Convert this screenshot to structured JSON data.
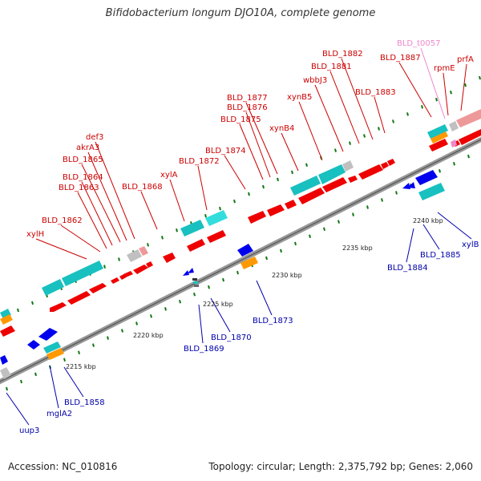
{
  "title": "Bifidobacterium longum DJO10A, complete genome",
  "footer": {
    "accession": "Accession: NC_010816",
    "summary": "Topology: circular; Length: 2,375,792 bp; Genes: 2,060"
  },
  "colors": {
    "forward_label": "#cc0000",
    "reverse_label": "#0000aa",
    "trna_label": "#ee88cc",
    "forward_cds": "#ee0000",
    "reverse_cds": "#0000ee",
    "rrna_cyan": "#19c0c0",
    "orange": "#ff9900",
    "grey": "#c0c0c0",
    "light_red": "#ee9999",
    "backbone": "#888888",
    "tick": "#117711"
  },
  "scale_labels": [
    {
      "text": "2215 kbp",
      "pos": 2215
    },
    {
      "text": "2220 kbp",
      "pos": 2220
    },
    {
      "text": "2225 kbp",
      "pos": 2225
    },
    {
      "text": "2230 kbp",
      "pos": 2230
    },
    {
      "text": "2235 kbp",
      "pos": 2235
    },
    {
      "text": "2240 kbp",
      "pos": 2240
    }
  ],
  "forward_labels": [
    {
      "text": "xylH"
    },
    {
      "text": "BLD_1862"
    },
    {
      "text": "BLD_1863"
    },
    {
      "text": "BLD_1864"
    },
    {
      "text": "BLD_1865"
    },
    {
      "text": "akrA3"
    },
    {
      "text": "def3"
    },
    {
      "text": "BLD_1868"
    },
    {
      "text": "xylA"
    },
    {
      "text": "BLD_1872"
    },
    {
      "text": "BLD_1874"
    },
    {
      "text": "BLD_1875"
    },
    {
      "text": "BLD_1876"
    },
    {
      "text": "BLD_1877"
    },
    {
      "text": "xynB4"
    },
    {
      "text": "xynB5"
    },
    {
      "text": "wbbJ3"
    },
    {
      "text": "BLD_1881"
    },
    {
      "text": "BLD_1882"
    },
    {
      "text": "BLD_1883"
    },
    {
      "text": "BLD_1887"
    },
    {
      "text": "rpmE"
    },
    {
      "text": "prfA"
    }
  ],
  "trna_labels": [
    {
      "text": "BLD_t0057"
    }
  ],
  "reverse_labels": [
    {
      "text": "uup3"
    },
    {
      "text": "mglA2"
    },
    {
      "text": "BLD_1858"
    },
    {
      "text": "BLD_1869"
    },
    {
      "text": "BLD_1870"
    },
    {
      "text": "BLD_1873"
    },
    {
      "text": "BLD_1884"
    },
    {
      "text": "BLD_1885"
    },
    {
      "text": "xylB"
    }
  ]
}
